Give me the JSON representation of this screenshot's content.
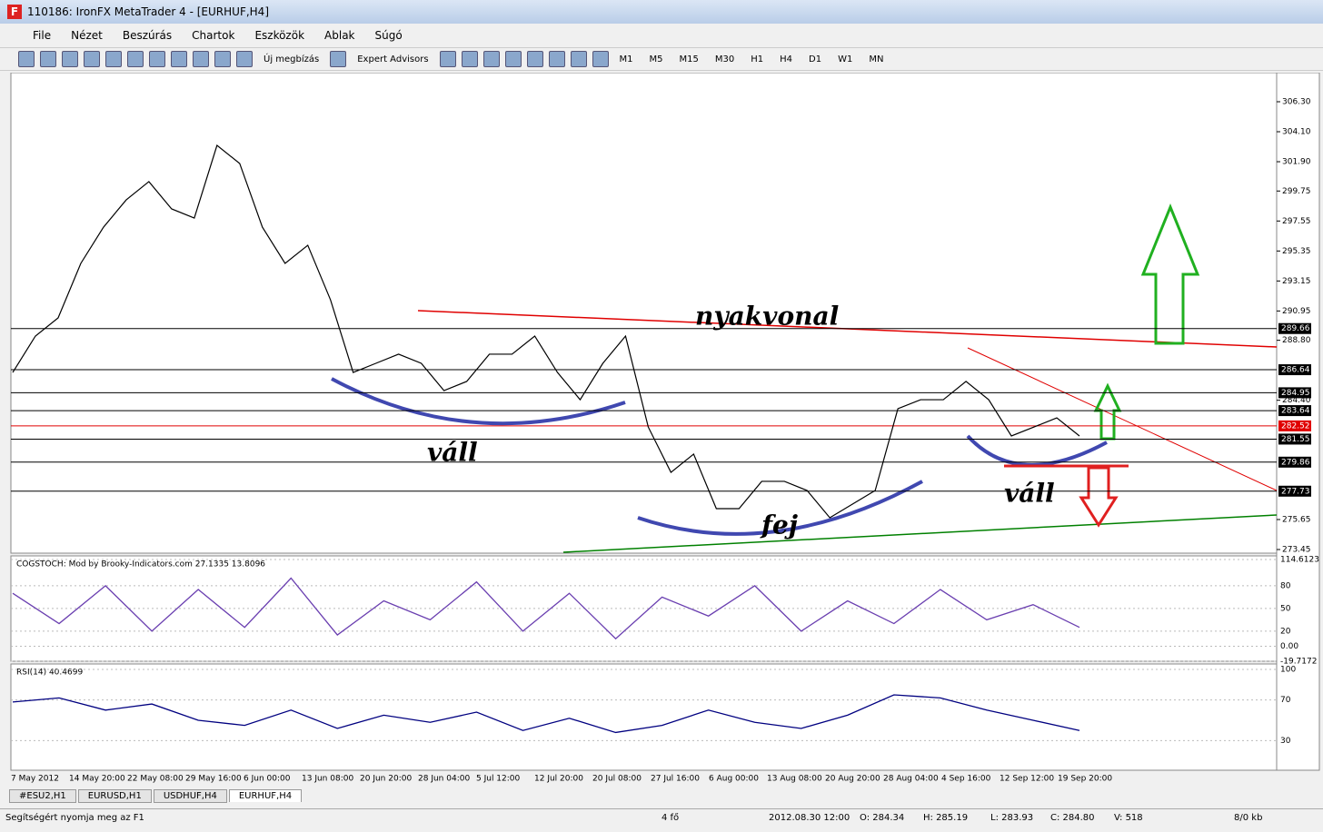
{
  "window": {
    "title": "110186: IronFX MetaTrader 4 - [EURHUF,H4]"
  },
  "menu": [
    "File",
    "Nézet",
    "Beszúrás",
    "Chartok",
    "Eszközök",
    "Ablak",
    "Súgó"
  ],
  "toolbar": {
    "buttons": [
      "Új megbízás",
      "Expert Advisors"
    ],
    "timeframes": [
      "M1",
      "M5",
      "M15",
      "M30",
      "H1",
      "H4",
      "D1",
      "W1",
      "MN"
    ]
  },
  "chart": {
    "price_ticks": [
      {
        "value": 306.3,
        "label": "306.30"
      },
      {
        "value": 304.1,
        "label": "304.10"
      },
      {
        "value": 301.9,
        "label": "301.90"
      },
      299.75,
      297.55,
      295.35,
      293.15,
      290.95,
      {
        "value": 288.8,
        "label": "288.80"
      },
      {
        "value": 284.4,
        "label": "284.40"
      },
      275.65,
      273.45
    ],
    "levels": [
      289.66,
      286.64,
      284.95,
      283.64,
      282.52,
      281.55,
      279.86,
      277.73
    ],
    "level_colors": [
      "#000000",
      "#000000",
      "#000000",
      "#000000",
      "#e00000",
      "#000000",
      "#000000",
      "#000000"
    ],
    "dates": [
      "7 May 2012",
      "14 May 20:00",
      "22 May 08:00",
      "29 May 16:00",
      "6 Jun 00:00",
      "13 Jun 08:00",
      "20 Jun 20:00",
      "28 Jun 04:00",
      "5 Jul 12:00",
      "12 Jul 20:00",
      "20 Jul 08:00",
      "27 Jul 16:00",
      "6 Aug 00:00",
      "13 Aug 08:00",
      "20 Aug 20:00",
      "28 Aug 04:00",
      "4 Sep 16:00",
      "12 Sep 12:00",
      "19 Sep 20:00"
    ],
    "closes": [
      286.44,
      289.11,
      290.44,
      294.44,
      297.1,
      299.1,
      300.44,
      298.44,
      297.77,
      303.1,
      301.77,
      297.1,
      294.44,
      295.77,
      291.77,
      286.44,
      287.11,
      287.78,
      287.11,
      285.11,
      285.78,
      287.78,
      287.78,
      289.11,
      286.44,
      284.44,
      287.11,
      289.11,
      282.44,
      279.11,
      280.45,
      276.45,
      276.45,
      278.45,
      278.45,
      277.78,
      275.78,
      276.78,
      277.78,
      283.78,
      284.44,
      284.44,
      285.78,
      284.44,
      281.78,
      282.44,
      283.11,
      281.78
    ],
    "annotations": [
      "nyakvonal",
      "váll",
      "fej",
      "váll"
    ]
  },
  "cogstoch": {
    "label": "COGSTOCH: Mod by Brooky-Indicators.com 27.1335 13.8096",
    "ylim": [
      -19.7172,
      114.6123
    ],
    "ticks": [
      114.6123,
      80,
      50,
      20,
      {
        "value": 0,
        "label": "0.00"
      },
      -19.7172
    ],
    "values": [
      70,
      30,
      80,
      20,
      75,
      25,
      90,
      15,
      60,
      35,
      85,
      20,
      70,
      10,
      65,
      40,
      80,
      20,
      60,
      30,
      75,
      35,
      55,
      25
    ]
  },
  "rsi": {
    "label": "RSI(14) 40.4699",
    "ylim": [
      0,
      100
    ],
    "ticks": [
      100,
      70,
      30
    ],
    "values": [
      68,
      72,
      60,
      66,
      50,
      45,
      60,
      42,
      55,
      48,
      58,
      40,
      52,
      38,
      45,
      60,
      48,
      42,
      55,
      75,
      72,
      60,
      50,
      40
    ]
  },
  "tabs": [
    "#ESU2,H1",
    "EURUSD,H1",
    "USDHUF,H4",
    "EURHUF,H4"
  ],
  "status": [
    "Segítségért nyomja meg az F1",
    "4 fő",
    "2012.08.30 12:00",
    "O: 284.34",
    "H: 285.19",
    "L: 283.93",
    "C: 284.80",
    "V: 518",
    "8/0 kb"
  ]
}
